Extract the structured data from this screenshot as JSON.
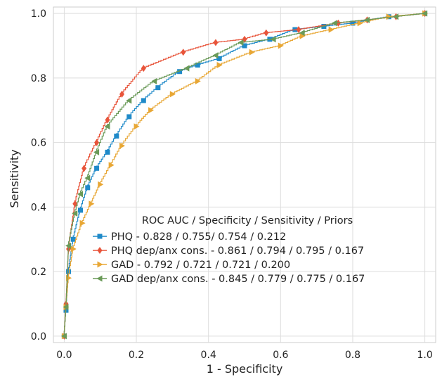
{
  "chart_data": {
    "type": "line",
    "xlabel": "1 - Specificity",
    "ylabel": "Sensitivity",
    "xlim": [
      -0.03,
      1.03
    ],
    "ylim": [
      -0.02,
      1.02
    ],
    "x_ticks": [
      "0.0",
      "0.2",
      "0.4",
      "0.6",
      "0.8",
      "1.0"
    ],
    "y_ticks": [
      "0.0",
      "0.2",
      "0.4",
      "0.6",
      "0.8",
      "1.0"
    ],
    "grid": true,
    "legend_title": "ROC AUC / Specificity / Sensitivity / Priors",
    "legend_position": "lower-center",
    "series": [
      {
        "name": "PHQ - 0.828 / 0.755/ 0.754 / 0.212",
        "color": "#1f8ac9",
        "marker": "square",
        "points": [
          [
            0,
            0
          ],
          [
            0.005,
            0.08
          ],
          [
            0.012,
            0.2
          ],
          [
            0.025,
            0.3
          ],
          [
            0.045,
            0.39
          ],
          [
            0.065,
            0.46
          ],
          [
            0.09,
            0.52
          ],
          [
            0.12,
            0.57
          ],
          [
            0.145,
            0.62
          ],
          [
            0.18,
            0.68
          ],
          [
            0.22,
            0.73
          ],
          [
            0.26,
            0.77
          ],
          [
            0.32,
            0.82
          ],
          [
            0.37,
            0.84
          ],
          [
            0.43,
            0.86
          ],
          [
            0.5,
            0.9
          ],
          [
            0.57,
            0.92
          ],
          [
            0.64,
            0.95
          ],
          [
            0.72,
            0.96
          ],
          [
            0.8,
            0.97
          ],
          [
            0.9,
            0.99
          ],
          [
            1.0,
            1.0
          ]
        ]
      },
      {
        "name": "PHQ dep/anx cons. - 0.861 / 0.794 / 0.795 / 0.167",
        "color": "#e8543a",
        "marker": "diamond",
        "points": [
          [
            0,
            0
          ],
          [
            0.005,
            0.1
          ],
          [
            0.012,
            0.27
          ],
          [
            0.03,
            0.41
          ],
          [
            0.055,
            0.52
          ],
          [
            0.09,
            0.6
          ],
          [
            0.12,
            0.67
          ],
          [
            0.16,
            0.75
          ],
          [
            0.22,
            0.83
          ],
          [
            0.33,
            0.88
          ],
          [
            0.42,
            0.91
          ],
          [
            0.5,
            0.92
          ],
          [
            0.56,
            0.94
          ],
          [
            0.65,
            0.95
          ],
          [
            0.76,
            0.97
          ],
          [
            0.84,
            0.98
          ],
          [
            0.92,
            0.99
          ],
          [
            1.0,
            1.0
          ]
        ]
      },
      {
        "name": "GAD - 0.792 / 0.721 / 0.721 / 0.200",
        "color": "#e8a735",
        "marker": "triangle-right",
        "points": [
          [
            0,
            0
          ],
          [
            0.005,
            0.09
          ],
          [
            0.012,
            0.18
          ],
          [
            0.025,
            0.27
          ],
          [
            0.05,
            0.35
          ],
          [
            0.075,
            0.41
          ],
          [
            0.1,
            0.47
          ],
          [
            0.13,
            0.53
          ],
          [
            0.16,
            0.59
          ],
          [
            0.2,
            0.65
          ],
          [
            0.24,
            0.7
          ],
          [
            0.3,
            0.75
          ],
          [
            0.37,
            0.79
          ],
          [
            0.43,
            0.84
          ],
          [
            0.52,
            0.88
          ],
          [
            0.6,
            0.9
          ],
          [
            0.66,
            0.93
          ],
          [
            0.74,
            0.95
          ],
          [
            0.82,
            0.97
          ],
          [
            0.9,
            0.99
          ],
          [
            1.0,
            1.0
          ]
        ]
      },
      {
        "name": "GAD dep/anx cons. - 0.845 / 0.779 / 0.775 / 0.167",
        "color": "#6a9a58",
        "marker": "triangle-left",
        "points": [
          [
            0,
            0
          ],
          [
            0.005,
            0.09
          ],
          [
            0.012,
            0.28
          ],
          [
            0.03,
            0.38
          ],
          [
            0.045,
            0.44
          ],
          [
            0.065,
            0.49
          ],
          [
            0.09,
            0.57
          ],
          [
            0.12,
            0.65
          ],
          [
            0.18,
            0.73
          ],
          [
            0.25,
            0.79
          ],
          [
            0.34,
            0.83
          ],
          [
            0.42,
            0.87
          ],
          [
            0.49,
            0.91
          ],
          [
            0.58,
            0.92
          ],
          [
            0.66,
            0.94
          ],
          [
            0.75,
            0.97
          ],
          [
            0.84,
            0.98
          ],
          [
            0.92,
            0.99
          ],
          [
            1.0,
            1.0
          ]
        ]
      }
    ]
  }
}
